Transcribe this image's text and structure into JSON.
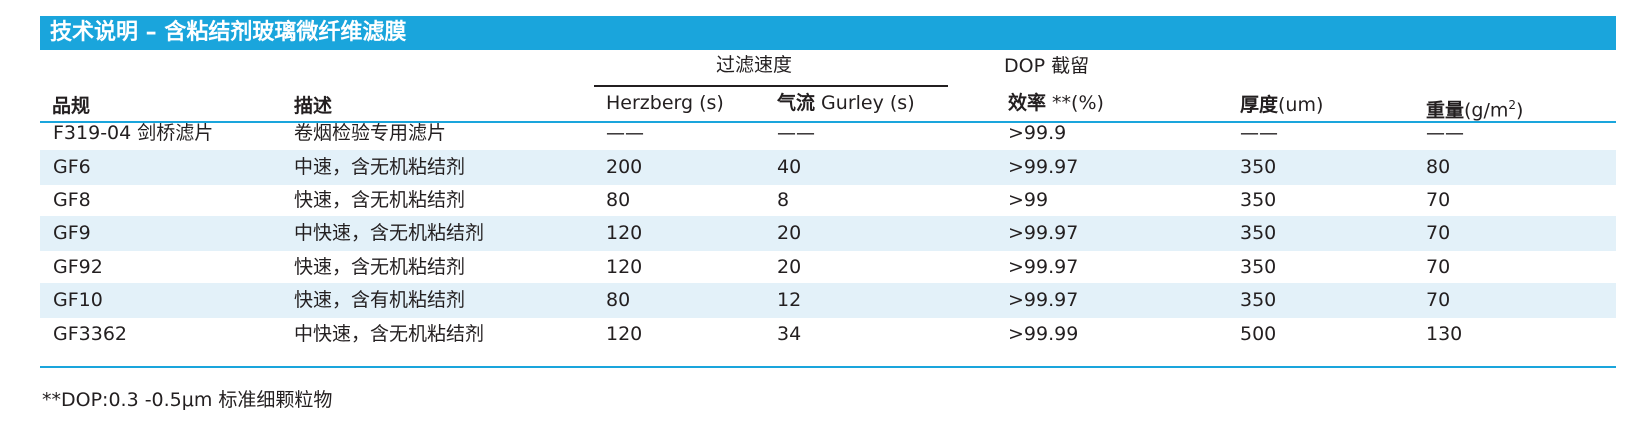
{
  "title": "技术说明 – 含粘结剂玻璃微纤维滤膜",
  "header": {
    "group_filter_speed": "过滤速度",
    "group_dop": "DOP 截留",
    "col_spec": "品规",
    "col_desc": "描述",
    "col_herzberg": "Herzberg (s)",
    "col_gurley_prefix": "气流",
    "col_gurley": " Gurley (s)",
    "col_efficiency_prefix": "效率",
    "col_efficiency": " **(%)",
    "col_thickness_prefix": "厚度",
    "col_thickness": "(um)",
    "col_weight_prefix": "重量",
    "col_weight_unit": "(g/m",
    "col_weight_sup": "2",
    "col_weight_close": ")"
  },
  "rows": [
    [
      "F319-04 剑桥滤片",
      "卷烟检验专用滤片",
      "——",
      "——",
      ">99.9",
      "——",
      "——"
    ],
    [
      "GF6",
      "中速，含无机粘结剂",
      "200",
      "40",
      ">99.97",
      "350",
      "80"
    ],
    [
      "GF8",
      "快速，含无机粘结剂",
      "80",
      "8",
      ">99",
      "350",
      "70"
    ],
    [
      "GF9",
      "中快速，含无机粘结剂",
      "120",
      "20",
      ">99.97",
      "350",
      "70"
    ],
    [
      "GF92",
      "快速，含无机粘结剂",
      "120",
      "20",
      ">99.97",
      "350",
      "70"
    ],
    [
      "GF10",
      "快速，含有机粘结剂",
      "80",
      "12",
      ">99.97",
      "350",
      "70"
    ],
    [
      "GF3362",
      "中快速，含无机粘结剂",
      "120",
      "34",
      ">99.99",
      "500",
      "130"
    ]
  ],
  "footnote": "**DOP:0.3 -0.5μm 标准细颗粒物",
  "colors": {
    "accent": "#1aa5dc",
    "stripe": "#e3f1f9",
    "text": "#231f20"
  }
}
